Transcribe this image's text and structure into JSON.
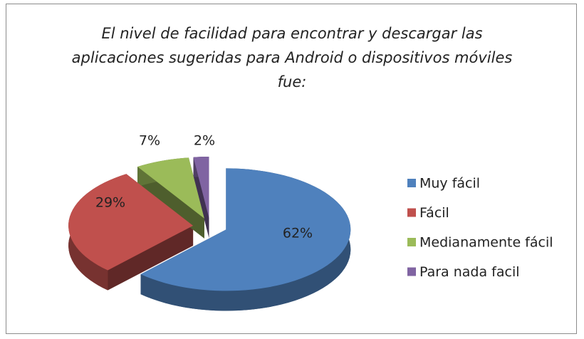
{
  "chart_data": {
    "type": "pie3d",
    "title": "El nivel de facilidad para encontrar  y descargar las aplicaciones sugeridas para Android o dispositivos móviles fue:",
    "categories": [
      "Muy fácil",
      "Fácil",
      "Medianamente fácil",
      "Para nada facil"
    ],
    "values": [
      62,
      29,
      7,
      2
    ],
    "value_labels": [
      "62%",
      "29%",
      "7%",
      "2%"
    ],
    "colors": [
      "#4f81bd",
      "#c0504d",
      "#9bbb59",
      "#8064a2"
    ],
    "legend": "right"
  }
}
